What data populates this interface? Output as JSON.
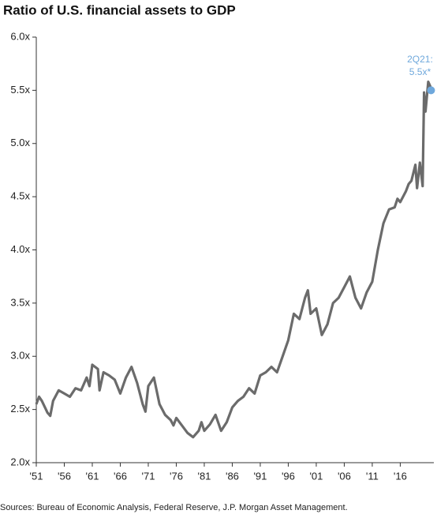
{
  "chart_data": {
    "type": "line",
    "title": "Ratio of U.S. financial assets to GDP",
    "x": [
      1951,
      1951.5,
      1952,
      1953,
      1953.5,
      1954,
      1955,
      1956,
      1957,
      1958,
      1959,
      1960,
      1960.5,
      1961,
      1962,
      1962.3,
      1963,
      1964,
      1965,
      1966,
      1967,
      1968,
      1969,
      1970,
      1970.5,
      1971,
      1972,
      1973,
      1974,
      1975,
      1975.5,
      1976,
      1977,
      1978,
      1979,
      1980,
      1980.5,
      1981,
      1982,
      1983,
      1984,
      1985,
      1986,
      1987,
      1988,
      1989,
      1990,
      1991,
      1992,
      1993,
      1994,
      1995,
      1996,
      1997,
      1998,
      1999,
      1999.5,
      2000,
      2001,
      2002,
      2003,
      2004,
      2005,
      2006,
      2007,
      2008,
      2009,
      2010,
      2011,
      2012,
      2013,
      2014,
      2015,
      2015.5,
      2016,
      2017,
      2017.5,
      2018,
      2018.7,
      2019,
      2019.5,
      2020,
      2020.25,
      2020.5,
      2021,
      2021.5
    ],
    "series": [
      {
        "name": "Ratio",
        "color": "#6b6b6b",
        "values": [
          2.55,
          2.62,
          2.58,
          2.47,
          2.44,
          2.58,
          2.68,
          2.65,
          2.62,
          2.7,
          2.68,
          2.8,
          2.72,
          2.92,
          2.88,
          2.68,
          2.85,
          2.82,
          2.78,
          2.65,
          2.8,
          2.9,
          2.75,
          2.55,
          2.48,
          2.72,
          2.8,
          2.55,
          2.45,
          2.4,
          2.35,
          2.42,
          2.35,
          2.28,
          2.24,
          2.3,
          2.38,
          2.3,
          2.36,
          2.45,
          2.3,
          2.38,
          2.52,
          2.58,
          2.62,
          2.7,
          2.65,
          2.82,
          2.85,
          2.9,
          2.85,
          3.0,
          3.15,
          3.4,
          3.35,
          3.55,
          3.62,
          3.4,
          3.45,
          3.2,
          3.3,
          3.5,
          3.55,
          3.65,
          3.75,
          3.55,
          3.45,
          3.6,
          3.7,
          4.0,
          4.25,
          4.38,
          4.4,
          4.48,
          4.45,
          4.55,
          4.62,
          4.65,
          4.8,
          4.58,
          4.82,
          4.6,
          5.48,
          5.3,
          5.58,
          5.52
        ]
      }
    ],
    "highlight": {
      "x": 2021.5,
      "value": 5.5,
      "color": "#6fa8dc",
      "label": [
        "2Q21:",
        "5.5x*"
      ]
    },
    "xlim": [
      1951,
      2022
    ],
    "xticks": [
      {
        "value": 1951,
        "label": "'51"
      },
      {
        "value": 1956,
        "label": "'56"
      },
      {
        "value": 1961,
        "label": "'61"
      },
      {
        "value": 1966,
        "label": "'66"
      },
      {
        "value": 1971,
        "label": "'71"
      },
      {
        "value": 1976,
        "label": "'76"
      },
      {
        "value": 1981,
        "label": "'81"
      },
      {
        "value": 1986,
        "label": "'86"
      },
      {
        "value": 1991,
        "label": "'91"
      },
      {
        "value": 1996,
        "label": "'96"
      },
      {
        "value": 2001,
        "label": "'01"
      },
      {
        "value": 2006,
        "label": "'06"
      },
      {
        "value": 2011,
        "label": "'11"
      },
      {
        "value": 2016,
        "label": "'16"
      }
    ],
    "ylim": [
      2,
      6
    ],
    "yticks": [
      {
        "value": 2,
        "label": "2.0x"
      },
      {
        "value": 2.5,
        "label": "2.5x"
      },
      {
        "value": 3,
        "label": "3.0x"
      },
      {
        "value": 3.5,
        "label": "3.5x"
      },
      {
        "value": 4,
        "label": "4.0x"
      },
      {
        "value": 4.5,
        "label": "4.5x"
      },
      {
        "value": 5,
        "label": "5.0x"
      },
      {
        "value": 5.5,
        "label": "5.5x"
      },
      {
        "value": 6,
        "label": "6.0x"
      }
    ],
    "grid": false,
    "source": "Sources: Bureau of Economic Analysis, Federal Reserve, J.P. Morgan Asset Management."
  }
}
